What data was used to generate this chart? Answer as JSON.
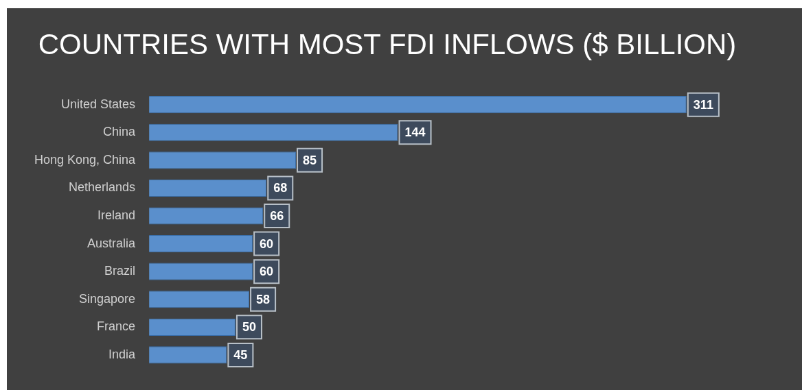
{
  "chart_data": {
    "type": "bar",
    "orientation": "horizontal",
    "title": "COUNTRIES WITH MOST FDI INFLOWS ($ BILLION)",
    "categories": [
      "United States",
      "China",
      "Hong Kong, China",
      "Netherlands",
      "Ireland",
      "Australia",
      "Brazil",
      "Singapore",
      "France",
      "India"
    ],
    "values": [
      311,
      144,
      85,
      68,
      66,
      60,
      60,
      58,
      50,
      45
    ],
    "color": "#5a8fcc",
    "data_labels": true,
    "tick_labels": "y",
    "legend": false,
    "grid": false
  }
}
